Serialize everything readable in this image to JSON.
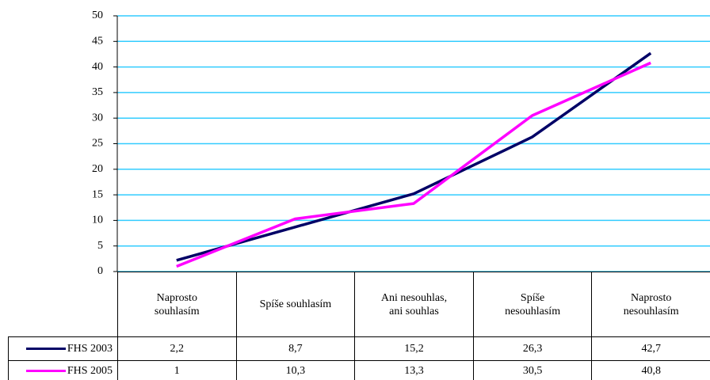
{
  "chart_data": {
    "type": "line",
    "categories": [
      "Naprosto souhlasím",
      "Spíše souhlasím",
      "Ani nesouhlas, ani souhlas",
      "Spíše nesouhlasím",
      "Naprosto nesouhlasím"
    ],
    "series": [
      {
        "name": "FHS 2003",
        "color": "#000066",
        "values": [
          2.2,
          8.7,
          15.2,
          26.3,
          42.7
        ],
        "value_labels": [
          "2,2",
          "8,7",
          "15,2",
          "26,3",
          "42,7"
        ]
      },
      {
        "name": "FHS 2005",
        "color": "#ff00ff",
        "values": [
          1,
          10.3,
          13.3,
          30.5,
          40.8
        ],
        "value_labels": [
          "1",
          "10,3",
          "13,3",
          "30,5",
          "40,8"
        ]
      }
    ],
    "ylim": [
      0,
      50
    ],
    "yticks": [
      0,
      5,
      10,
      15,
      20,
      25,
      30,
      35,
      40,
      45,
      50
    ],
    "grid": true,
    "grid_color": "#33ccff"
  }
}
